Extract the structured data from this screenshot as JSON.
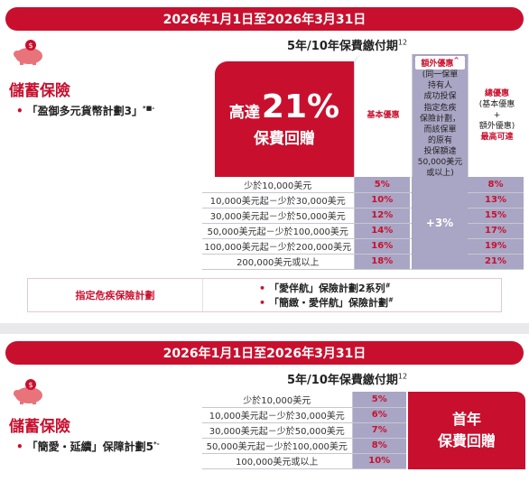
{
  "section1": {
    "banner": "2026年1月1日至2026年3月31日",
    "period_label": "5年/10年保費繳付期",
    "period_sup": "12",
    "category": "儲蓄保險",
    "plan": "「盈御多元貨幣計劃3」",
    "plan_sup": "*■-",
    "hero_prefix": "高達",
    "hero_value": "21%",
    "hero_caption": "保費回贈",
    "col_base": "基本優惠",
    "col_extra_title": "額外優惠",
    "col_extra_title_sup": "^",
    "col_extra_note_lines": [
      "(同一保單",
      "持有人",
      "成功投保",
      "指定危疾",
      "保險計劃，",
      "而該保單",
      "的原有",
      "投保額達",
      "50,000美元",
      "或以上)"
    ],
    "col_total_title": "總優惠",
    "col_total_sub_lines": [
      "(基本優惠",
      "+",
      "額外優惠)"
    ],
    "col_total_tail": "最高可達",
    "extra_value": "+3%",
    "rows": [
      {
        "range": "少於10,000美元",
        "base": "5%",
        "total": "8%"
      },
      {
        "range": "10,000美元起－少於30,000美元",
        "base": "10%",
        "total": "13%"
      },
      {
        "range": "30,000美元起－少於50,000美元",
        "base": "12%",
        "total": "15%"
      },
      {
        "range": "50,000美元起－少於100,000美元",
        "base": "14%",
        "total": "17%"
      },
      {
        "range": "100,000美元起－少於200,000美元",
        "base": "16%",
        "total": "19%"
      },
      {
        "range": "200,000美元或以上",
        "base": "18%",
        "total": "21%"
      }
    ],
    "ci_label": "指定危疾保險計劃",
    "ci_plans": [
      {
        "name": "「愛伴航」保險計劃2系列",
        "sup": "#"
      },
      {
        "name": "「簡緻・愛伴航」保險計劃",
        "sup": "#"
      }
    ]
  },
  "section2": {
    "banner": "2026年1月1日至2026年3月31日",
    "period_label": "5年/10年保費繳付期",
    "period_sup": "12",
    "category": "儲蓄保險",
    "plan": "「簡愛・延續」保障計劃5",
    "plan_sup": "*-",
    "rows": [
      {
        "range": "少於10,000美元",
        "value": "5%"
      },
      {
        "range": "10,000美元起－少於30,000美元",
        "value": "6%"
      },
      {
        "range": "30,000美元起－少於50,000美元",
        "value": "7%"
      },
      {
        "range": "50,000美元起－少於100,000美元",
        "value": "8%"
      },
      {
        "range": "100,000美元或以上",
        "value": "10%"
      }
    ],
    "first_year_line1": "首年",
    "first_year_line2": "保費回贈"
  },
  "colors": {
    "brand": "#c8102e",
    "lavender": "#a9a5c4"
  },
  "icons": {
    "pig": "piggy-bank-icon"
  }
}
